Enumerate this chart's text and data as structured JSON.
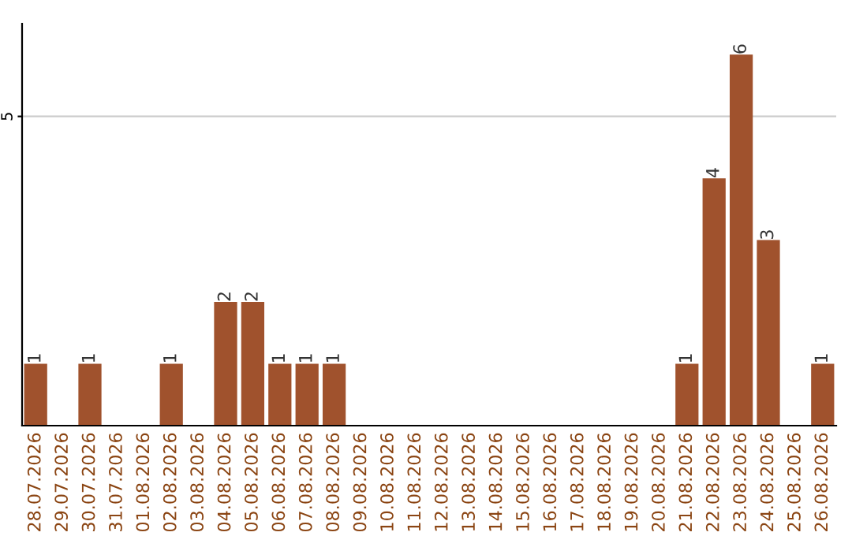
{
  "chart_data": {
    "type": "bar",
    "categories": [
      "28.07.2026",
      "29.07.2026",
      "30.07.2026",
      "31.07.2026",
      "01.08.2026",
      "02.08.2026",
      "03.08.2026",
      "04.08.2026",
      "05.08.2026",
      "06.08.2026",
      "07.08.2026",
      "08.08.2026",
      "09.08.2026",
      "10.08.2026",
      "11.08.2026",
      "12.08.2026",
      "13.08.2026",
      "14.08.2026",
      "15.08.2026",
      "16.08.2026",
      "17.08.2026",
      "18.08.2026",
      "19.08.2026",
      "20.08.2026",
      "21.08.2026",
      "22.08.2026",
      "23.08.2026",
      "24.08.2026",
      "25.08.2026",
      "26.08.2026"
    ],
    "values": [
      1,
      0,
      1,
      0,
      0,
      1,
      0,
      2,
      2,
      1,
      1,
      1,
      0,
      0,
      0,
      0,
      0,
      0,
      0,
      0,
      0,
      0,
      0,
      0,
      1,
      4,
      6,
      3,
      0,
      1
    ],
    "value_labels": [
      "1",
      null,
      "1",
      null,
      null,
      "1",
      null,
      "2",
      "2",
      "1",
      "1",
      "1",
      null,
      null,
      null,
      null,
      null,
      null,
      null,
      null,
      null,
      null,
      null,
      null,
      "1",
      "4",
      "6",
      "3",
      null,
      "1"
    ],
    "color": "#a0522d",
    "ylim": [
      0,
      6.5
    ],
    "yticks": [
      5
    ],
    "grid": "y",
    "legend": false
  }
}
